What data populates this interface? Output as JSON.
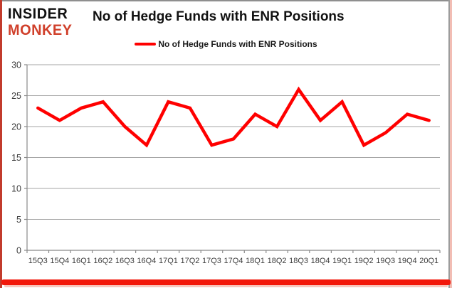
{
  "logo": {
    "line1": "INSIDER",
    "line2": "MONKEY"
  },
  "header": {
    "title": "No of Hedge Funds with ENR Positions"
  },
  "legend": {
    "label": "No of Hedge Funds with ENR Positions",
    "swatch_color": "#ff0000"
  },
  "chart_data": {
    "type": "line",
    "title": "No of Hedge Funds with ENR Positions",
    "categories": [
      "15Q3",
      "15Q4",
      "16Q1",
      "16Q2",
      "16Q3",
      "16Q4",
      "17Q1",
      "17Q2",
      "17Q3",
      "17Q4",
      "18Q1",
      "18Q2",
      "18Q3",
      "18Q4",
      "19Q1",
      "19Q2",
      "19Q3",
      "19Q4",
      "20Q1"
    ],
    "series": [
      {
        "name": "No of Hedge Funds with ENR Positions",
        "color": "#ff0000",
        "values": [
          23,
          21,
          23,
          24,
          20,
          17,
          24,
          23,
          17,
          18,
          22,
          20,
          26,
          21,
          24,
          17,
          19,
          22,
          21
        ]
      }
    ],
    "xlabel": "",
    "ylabel": "",
    "ylim": [
      0,
      30
    ],
    "yticks": [
      0,
      5,
      10,
      15,
      20,
      25,
      30
    ],
    "grid": true,
    "legend_position": "top"
  },
  "colors": {
    "grid": "#a6a6a6",
    "axis": "#898989",
    "tick_label": "#3c3c3c",
    "line": "#ff0000"
  }
}
